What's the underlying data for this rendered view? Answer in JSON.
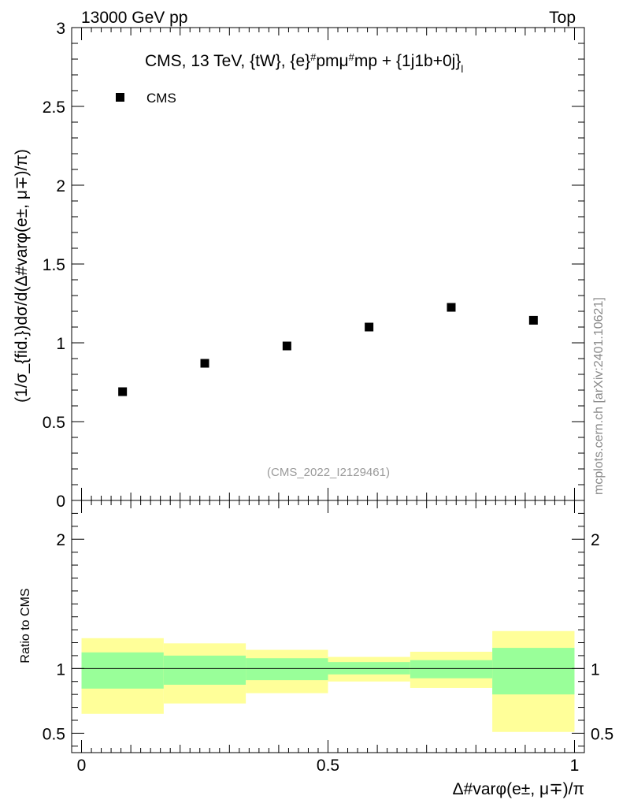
{
  "header": {
    "left": "13000 GeV pp",
    "right": "Top"
  },
  "side_label": "mcplots.cern.ch [arXiv:2401.10621]",
  "watermark": "(CMS_2022_I2129461)",
  "colors": {
    "band_outer": "#ffff99",
    "band_inner": "#99ff99",
    "marker": "#000000",
    "frame": "#000000"
  },
  "chart_data": [
    {
      "type": "scatter",
      "title_main": "CMS, 13 TeV, {tW}, {e}",
      "title_sup1": "#",
      "title_mid": "pmμ",
      "title_sup2": "#",
      "title_tail": "mp + {1j1b+0j}",
      "title_sub": "l",
      "ylabel": "(1/σ_{fid.})dσ/d(Δ#varφ(e±, μ∓)/π)",
      "ylim": [
        0,
        3
      ],
      "yticks": [
        0,
        0.5,
        1,
        1.5,
        2,
        2.5,
        3
      ],
      "yticklabels": [
        "0",
        "0.5",
        "1",
        "1.5",
        "2",
        "2.5",
        "3"
      ],
      "xlim": [
        -0.02,
        1.02
      ],
      "legend": [
        {
          "name": "CMS",
          "marker": "square",
          "position": "top-left"
        }
      ],
      "series": [
        {
          "name": "CMS",
          "x": [
            0.0833,
            0.25,
            0.4167,
            0.5833,
            0.75,
            0.9167
          ],
          "values": [
            0.69,
            0.87,
            0.98,
            1.1,
            1.225,
            1.143
          ]
        }
      ]
    },
    {
      "type": "area",
      "ylabel": "Ratio to CMS",
      "xlabel": "Δ#varφ(e±, μ∓)/π",
      "xlim": [
        -0.02,
        1.02
      ],
      "ylim": [
        0.35,
        2.3
      ],
      "xticks": [
        0,
        0.5,
        1
      ],
      "xticklabels": [
        "0",
        "0.5",
        "1"
      ],
      "yticks": [
        0.5,
        1,
        2
      ],
      "yticklabels": [
        "0.5",
        "1",
        "2"
      ],
      "reference_line": 1,
      "bins": [
        {
          "lo": 0.0,
          "hi": 0.1667,
          "inner": [
            0.845,
            1.125
          ],
          "outer": [
            0.65,
            1.235
          ]
        },
        {
          "lo": 0.1667,
          "hi": 0.3333,
          "inner": [
            0.875,
            1.1
          ],
          "outer": [
            0.73,
            1.195
          ]
        },
        {
          "lo": 0.3333,
          "hi": 0.5,
          "inner": [
            0.91,
            1.08
          ],
          "outer": [
            0.81,
            1.145
          ]
        },
        {
          "lo": 0.5,
          "hi": 0.6667,
          "inner": [
            0.955,
            1.05
          ],
          "outer": [
            0.9,
            1.09
          ]
        },
        {
          "lo": 0.6667,
          "hi": 0.8333,
          "inner": [
            0.925,
            1.065
          ],
          "outer": [
            0.85,
            1.13
          ]
        },
        {
          "lo": 0.8333,
          "hi": 1.0,
          "inner": [
            0.8,
            1.16
          ],
          "outer": [
            0.51,
            1.29
          ]
        }
      ]
    }
  ]
}
